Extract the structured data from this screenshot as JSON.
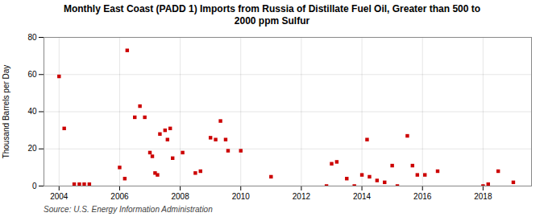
{
  "chart_data": {
    "type": "scatter",
    "title": "Monthly East Coast (PADD 1) Imports from Russia of Distillate Fuel Oil, Greater than 500 to\n2000 ppm Sulfur",
    "ylabel": "Thousand Barrels per Day",
    "source": "Source: U.S. Energy Information Administration",
    "color": "#cc0000",
    "marker": "square",
    "grid": true,
    "xlim": [
      2003.5,
      2019.6
    ],
    "xticks": [
      2004,
      2006,
      2008,
      2010,
      2012,
      2014,
      2016,
      2018
    ],
    "ylim": [
      0,
      80
    ],
    "yticks": [
      0,
      20,
      40,
      60,
      80
    ],
    "x": [
      2004.0,
      2004.17,
      2004.5,
      2004.67,
      2004.83,
      2005.0,
      2006.0,
      2006.17,
      2006.25,
      2006.5,
      2006.67,
      2006.83,
      2007.0,
      2007.08,
      2007.17,
      2007.25,
      2007.33,
      2007.5,
      2007.58,
      2007.67,
      2007.75,
      2008.08,
      2008.5,
      2008.67,
      2009.0,
      2009.17,
      2009.33,
      2009.5,
      2009.58,
      2010.0,
      2011.0,
      2012.83,
      2013.0,
      2013.17,
      2013.5,
      2013.75,
      2014.0,
      2014.17,
      2014.25,
      2014.5,
      2014.75,
      2015.0,
      2015.17,
      2015.5,
      2015.67,
      2015.83,
      2016.08,
      2016.5,
      2018.0,
      2018.17,
      2018.5,
      2019.0
    ],
    "values": [
      59,
      31,
      1,
      1,
      1,
      1,
      10,
      4,
      73,
      37,
      43,
      37,
      18,
      16,
      7,
      6,
      28,
      30,
      25,
      31,
      15,
      18,
      7,
      8,
      26,
      25,
      35,
      25,
      19,
      19,
      5,
      0,
      12,
      13,
      4,
      0,
      6,
      25,
      5,
      3,
      2,
      11,
      0,
      27,
      11,
      6,
      6,
      8,
      0,
      1,
      8,
      2
    ]
  }
}
